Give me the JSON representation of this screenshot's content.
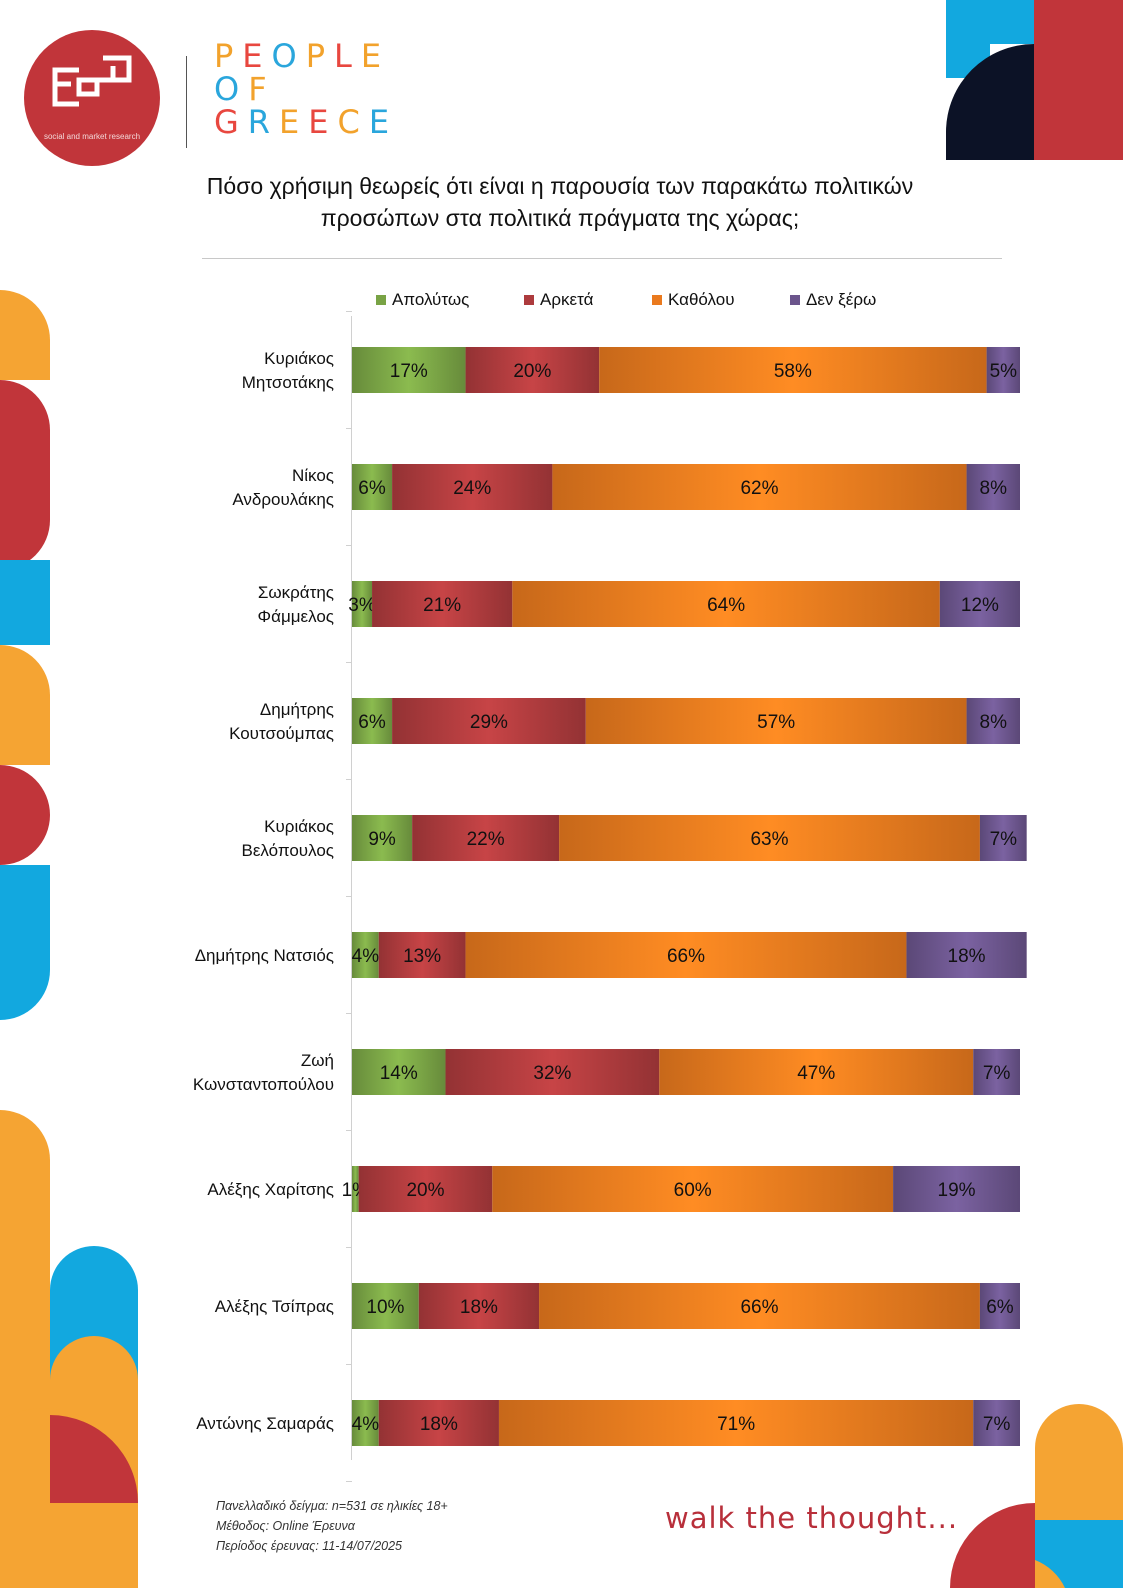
{
  "header": {
    "logo": {
      "icon": "ged-logo-mark",
      "tagline": "social and market research"
    },
    "brand_lines": [
      [
        {
          "ch": "P",
          "color": "#f2a22c"
        },
        {
          "ch": "E",
          "color": "#e8473f"
        },
        {
          "ch": "O",
          "color": "#2aa6dc"
        },
        {
          "ch": "P",
          "color": "#f2a22c"
        },
        {
          "ch": "L",
          "color": "#e8473f"
        },
        {
          "ch": "E",
          "color": "#f2a22c"
        }
      ],
      [
        {
          "ch": "O",
          "color": "#2aa6dc"
        },
        {
          "ch": "F",
          "color": "#f2a22c"
        }
      ],
      [
        {
          "ch": "G",
          "color": "#e8473f"
        },
        {
          "ch": "R",
          "color": "#2aa6dc"
        },
        {
          "ch": "E",
          "color": "#f2a22c"
        },
        {
          "ch": "E",
          "color": "#e8473f"
        },
        {
          "ch": "C",
          "color": "#f2a22c"
        },
        {
          "ch": "E",
          "color": "#2aa6dc"
        }
      ]
    ]
  },
  "chart_data": {
    "type": "bar",
    "orientation": "horizontal",
    "stacked": true,
    "title": "Πόσο χρήσιμη θεωρείς ότι είναι η παρουσία των παρακάτω πολιτικών προσώπων στα πολιτικά πράγματα της χώρας;",
    "legend_position": "top",
    "xlim": [
      0,
      100
    ],
    "categories": [
      [
        "Κυριάκος",
        "Μητσοτάκης"
      ],
      [
        "Νίκος",
        "Ανδρουλάκης"
      ],
      [
        "Σωκράτης",
        "Φάμμελος"
      ],
      [
        "Δημήτρης",
        "Κουτσούμπας"
      ],
      [
        "Κυριάκος",
        "Βελόπουλος"
      ],
      [
        "Δημήτρης Νατσιός"
      ],
      [
        "Ζωή",
        "Κωνσταντοπούλου"
      ],
      [
        "Αλέξης Χαρίτσης"
      ],
      [
        "Αλέξης Τσίπρας"
      ],
      [
        "Αντώνης Σαμαράς"
      ]
    ],
    "series": [
      {
        "name": "Απολύτως",
        "color": "#79a345",
        "values": [
          17,
          6,
          3,
          6,
          9,
          4,
          14,
          1,
          10,
          4
        ]
      },
      {
        "name": "Αρκετά",
        "color": "#ad3b3d",
        "values": [
          20,
          24,
          21,
          29,
          22,
          13,
          32,
          20,
          18,
          18
        ]
      },
      {
        "name": "Καθόλου",
        "color": "#ea7a1e",
        "values": [
          58,
          62,
          64,
          57,
          63,
          66,
          47,
          60,
          66,
          71
        ]
      },
      {
        "name": "Δεν ξέρω",
        "color": "#6b558c",
        "values": [
          5,
          8,
          12,
          8,
          7,
          18,
          7,
          19,
          6,
          7
        ]
      }
    ]
  },
  "footer": {
    "notes": [
      "Πανελλαδικό δείγμα: n=531 σε ηλικίες 18+",
      "Μέθοδος: Online Έρευνα",
      "Περίοδος έρευνας:  11-14/07/2025"
    ],
    "slogan": "walk the thought..."
  },
  "colors": {
    "brand_red": "#c1353a",
    "orange": "#f5a433",
    "blue": "#12a8df",
    "navy": "#0c1226",
    "slogan_red": "#b82f3a"
  }
}
